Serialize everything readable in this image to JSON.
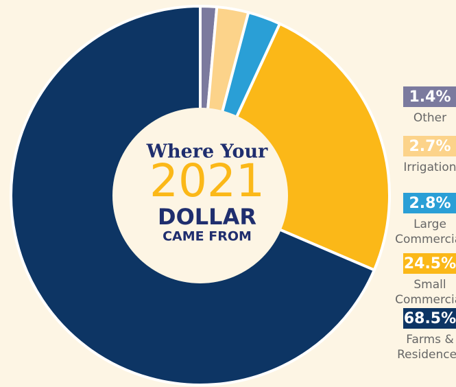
{
  "chart_data": {
    "type": "donut",
    "title_lines": [
      "Where Your",
      "2021",
      "DOLLAR",
      "CAME FROM"
    ],
    "categories": [
      "Other",
      "Irrigation",
      "Large Commercial",
      "Small Commercial",
      "Farms & Residences"
    ],
    "values": [
      1.4,
      2.7,
      2.8,
      24.5,
      68.5
    ],
    "value_labels": [
      "1.4%",
      "2.7%",
      "2.8%",
      "24.5%",
      "68.5%"
    ],
    "colors": [
      "#7b7a9e",
      "#fcd38a",
      "#2a9fd6",
      "#fbb818",
      "#0d3564"
    ]
  }
}
